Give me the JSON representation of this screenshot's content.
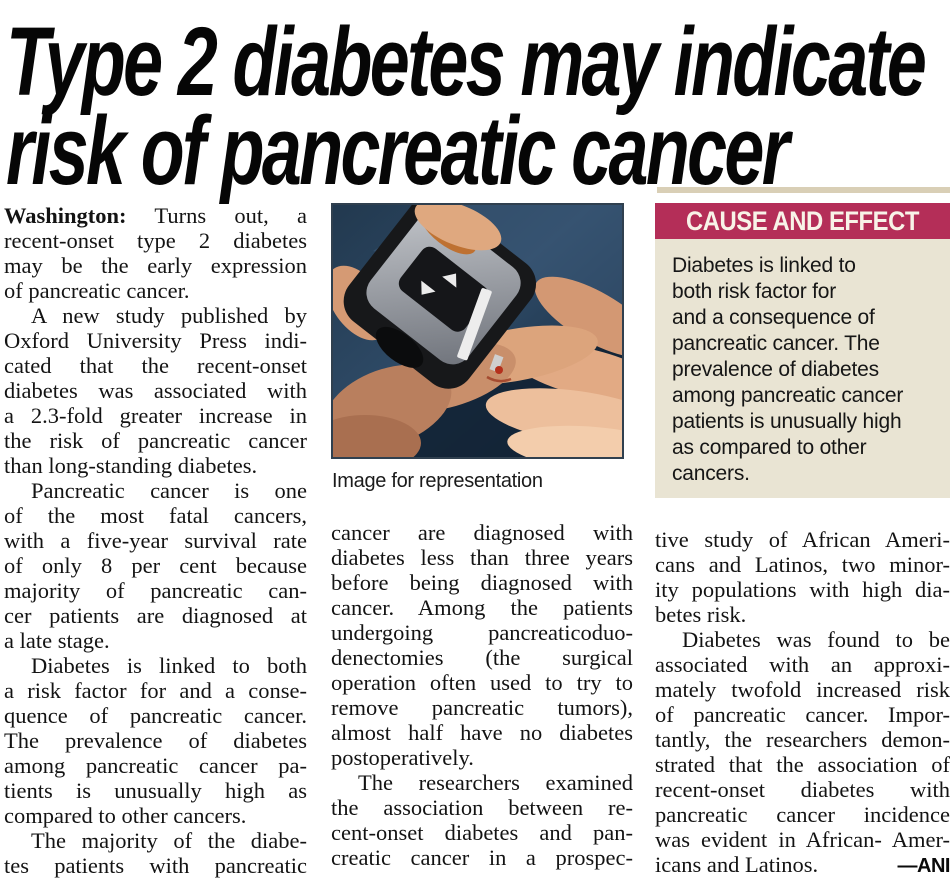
{
  "article": {
    "headline": {
      "line1": "Type 2 diabetes may indicate",
      "line2": "risk of pancreatic cancer"
    },
    "photo": {
      "caption": "Image for representation",
      "subject": "finger-prick blood glucose test with lancet device"
    },
    "infobox": {
      "title": "CAUSE AND EFFECT",
      "lines": [
        "Diabetes is linked to",
        "both risk factor for",
        "and a consequence of",
        "pancreatic cancer. The",
        "prevalence of diabetes",
        "among pancreatic cancer",
        "patients is unusually high",
        "as compared to other",
        "cancers."
      ],
      "title_bg": "#b42e58",
      "title_color": "#f8f3e8",
      "body_bg": "#e9e4d3"
    },
    "columns": {
      "col1": [
        {
          "bold": "Washington:",
          "text": " Turns out, a"
        },
        {
          "text": "recent-onset type 2 diabetes"
        },
        {
          "text": "may be the early expression"
        },
        {
          "text": "of pancreatic cancer.",
          "end": true
        },
        {
          "text": "A new study published by",
          "indent": true
        },
        {
          "text": "Oxford University Press indi-"
        },
        {
          "text": "cated that the recent-onset"
        },
        {
          "text": "diabetes was associated with"
        },
        {
          "text": "a 2.3-fold greater increase in"
        },
        {
          "text": "the risk of pancreatic cancer"
        },
        {
          "text": "than long-standing diabetes.",
          "end": true
        },
        {
          "text": "Pancreatic cancer is one",
          "indent": true
        },
        {
          "text": "of the most fatal cancers,"
        },
        {
          "text": "with a five-year survival rate"
        },
        {
          "text": "of only 8 per cent because"
        },
        {
          "text": "majority of pancreatic can-"
        },
        {
          "text": "cer patients are diagnosed at"
        },
        {
          "text": "a late stage.",
          "end": true
        },
        {
          "text": "Diabetes is linked to both",
          "indent": true
        },
        {
          "text": "a risk factor for and a conse-"
        },
        {
          "text": "quence of pancreatic cancer."
        },
        {
          "text": "The prevalence of diabetes"
        },
        {
          "text": "among pancreatic cancer pa-"
        },
        {
          "text": "tients is unusually high as"
        },
        {
          "text": "compared to other cancers.",
          "end": true
        },
        {
          "text": "The majority of the diabe-",
          "indent": true
        },
        {
          "text": "tes patients with pancreatic"
        }
      ],
      "col2": [
        {
          "text": "cancer are diagnosed with"
        },
        {
          "text": "diabetes less than three years"
        },
        {
          "text": "before being diagnosed with"
        },
        {
          "text": "cancer. Among the patients"
        },
        {
          "text": "undergoing pancreaticoduo-"
        },
        {
          "text": "denectomies (the surgical"
        },
        {
          "text": "operation often used to try to"
        },
        {
          "text": "remove pancreatic tumors),"
        },
        {
          "text": "almost half have no diabetes"
        },
        {
          "text": "postoperatively.",
          "end": true
        },
        {
          "text": "The researchers examined",
          "indent": true
        },
        {
          "text": "the association between re-"
        },
        {
          "text": "cent-onset diabetes and pan-"
        },
        {
          "text": "creatic cancer in a prospec-"
        }
      ],
      "col3": [
        {
          "text": "tive study of African Ameri-"
        },
        {
          "text": "cans and Latinos, two minor-"
        },
        {
          "text": "ity populations with high dia-"
        },
        {
          "text": "betes risk.",
          "end": true
        },
        {
          "text": "Diabetes was found to be",
          "indent": true
        },
        {
          "text": "associated with an approxi-"
        },
        {
          "text": "mately twofold increased risk"
        },
        {
          "text": "of pancreatic cancer. Impor-"
        },
        {
          "text": "tantly, the researchers demon-"
        },
        {
          "text": "strated that the association of"
        },
        {
          "text": "recent-onset diabetes with"
        },
        {
          "text": "pancreatic cancer incidence"
        },
        {
          "text": "was evident in African- Amer-"
        },
        {
          "text": "icans and Latinos.",
          "sig": "—ANI",
          "end": true
        }
      ]
    }
  }
}
